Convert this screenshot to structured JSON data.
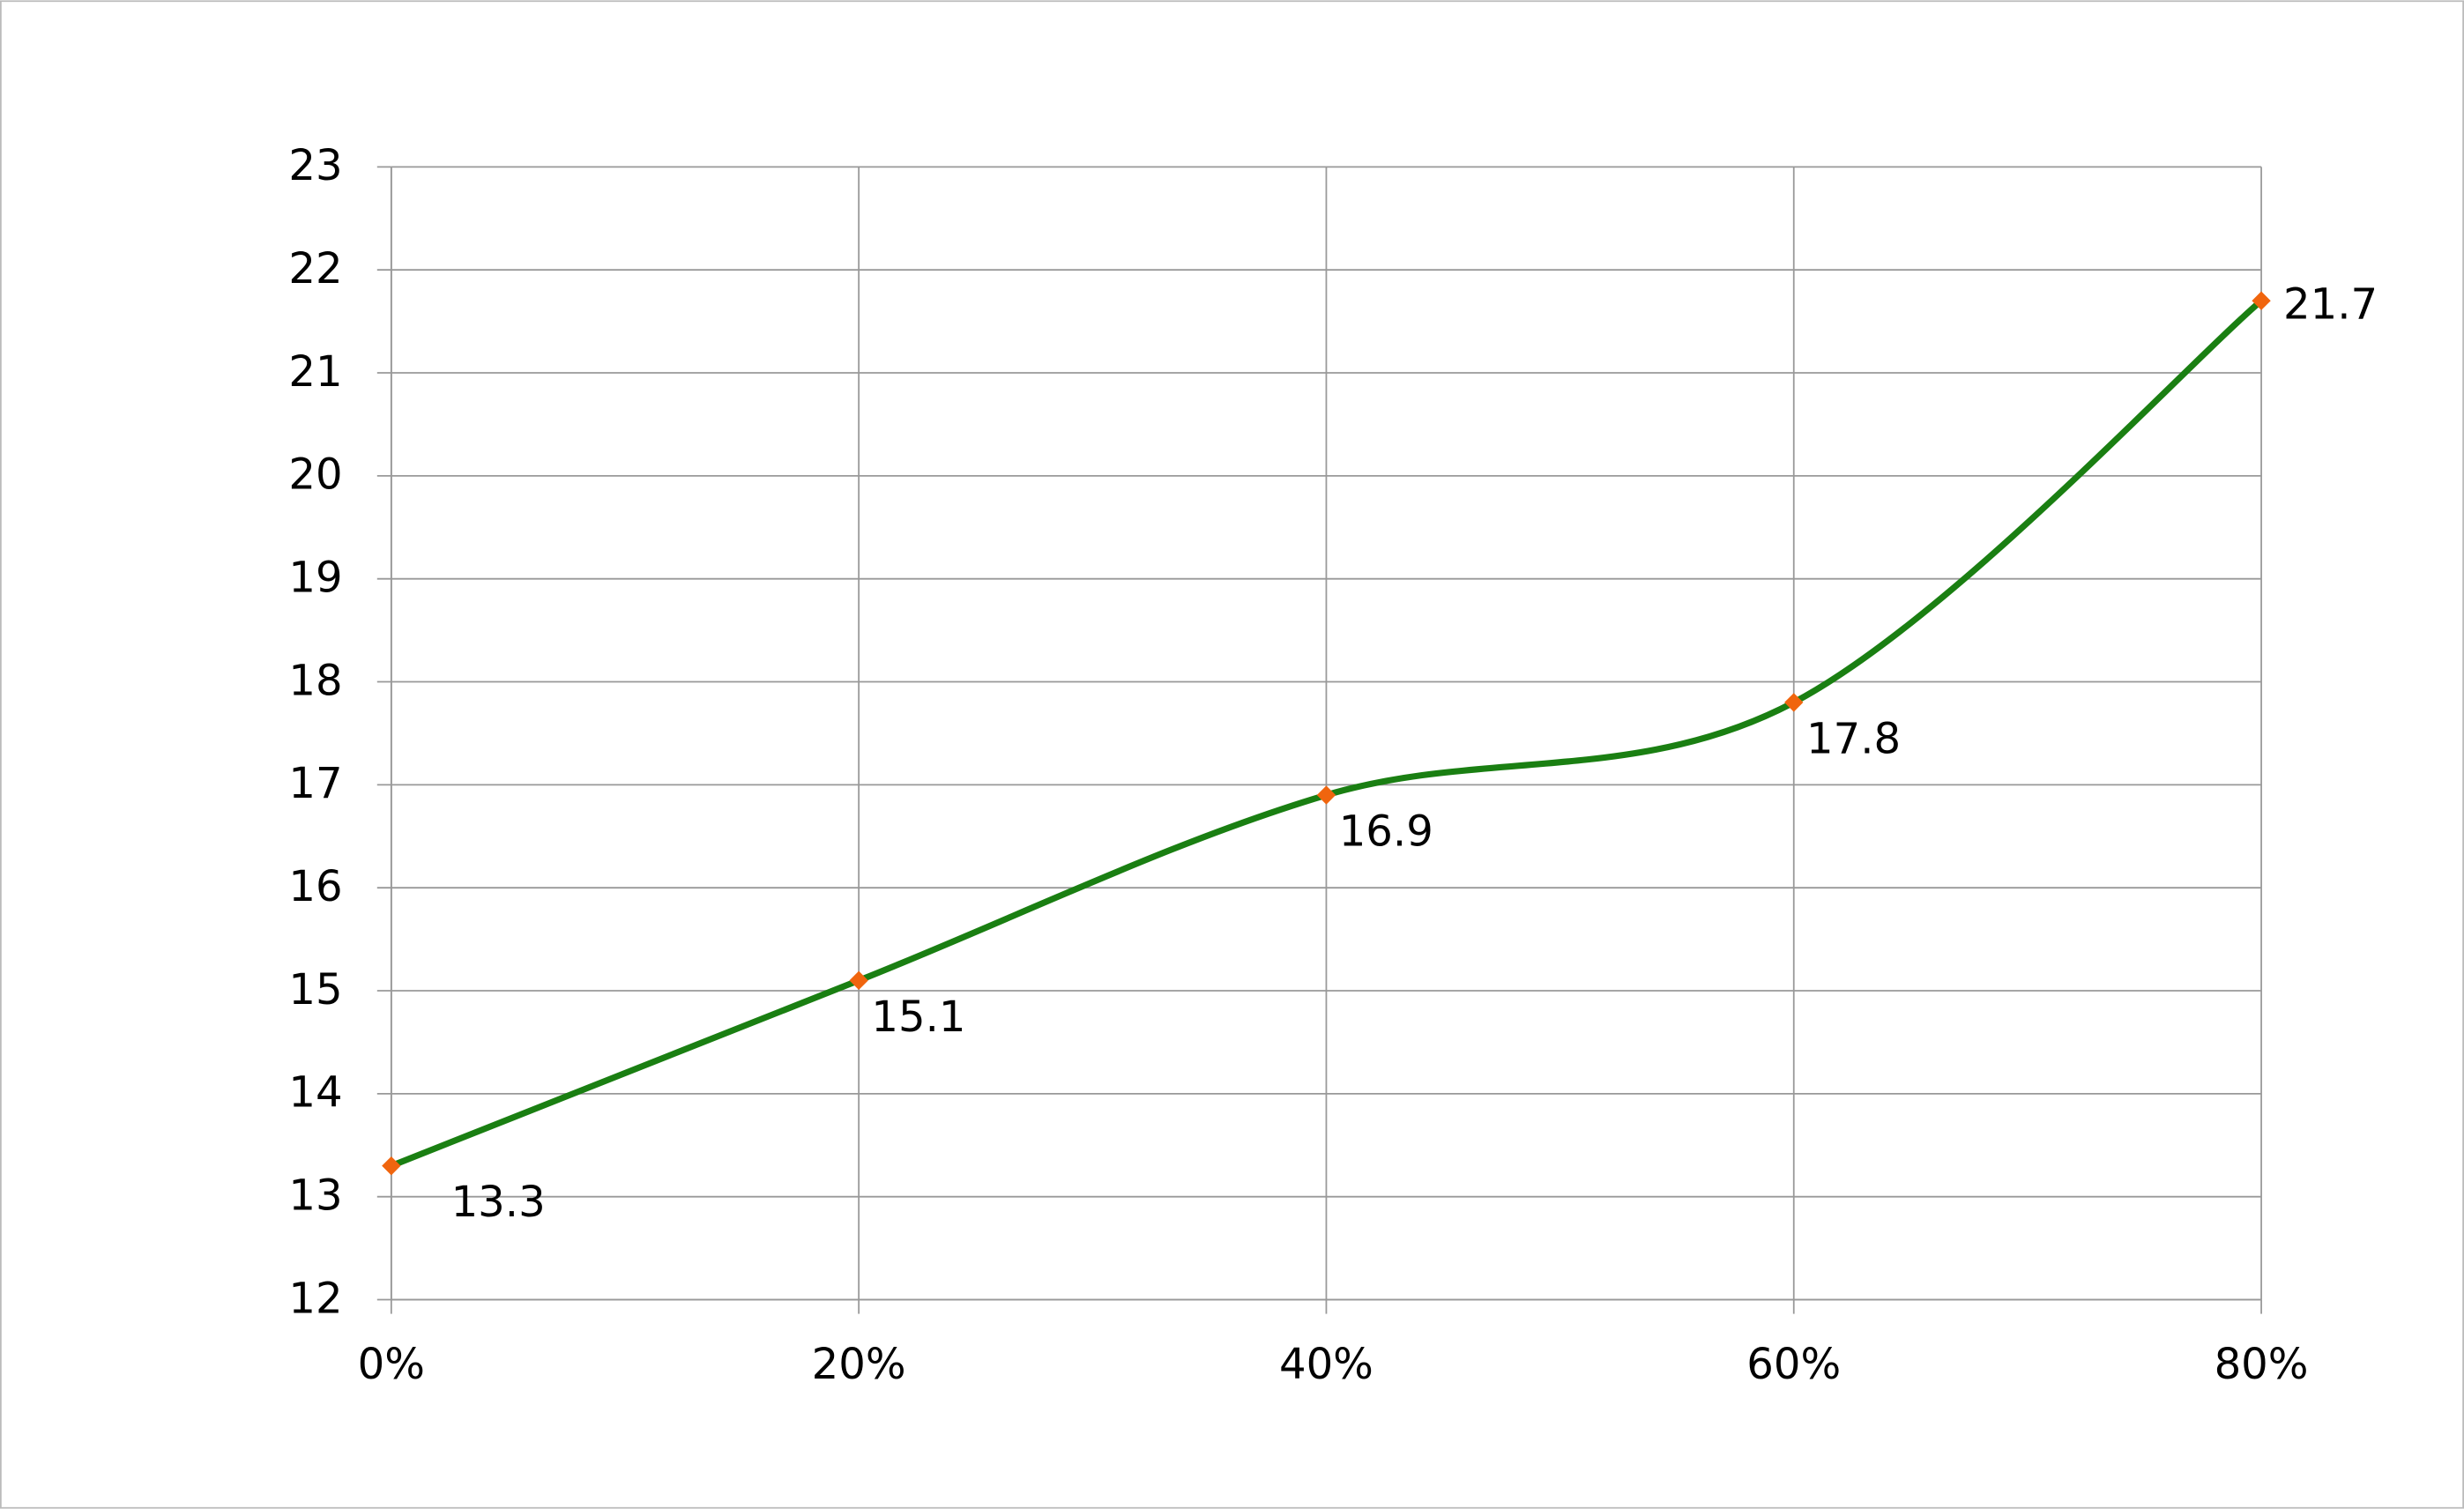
{
  "chart_data": {
    "type": "line",
    "x": [
      0,
      20,
      40,
      60,
      80
    ],
    "series": [
      {
        "color": "#1a7f12",
        "marker_color": "#f0650e",
        "values": [
          13.3,
          15.1,
          16.9,
          17.8,
          21.7
        ]
      }
    ],
    "xlim": [
      0,
      80
    ],
    "xticks": [
      {
        "value": 0,
        "label": "0%"
      },
      {
        "value": 20,
        "label": "20%"
      },
      {
        "value": 40,
        "label": "40%"
      },
      {
        "value": 60,
        "label": "60%"
      },
      {
        "value": 80,
        "label": "80%"
      }
    ],
    "ylim": [
      12,
      23
    ],
    "yticks": [
      12,
      13,
      14,
      15,
      16,
      17,
      18,
      19,
      20,
      21,
      22,
      23
    ],
    "grid": true,
    "smooth": true,
    "data_labels": true
  }
}
